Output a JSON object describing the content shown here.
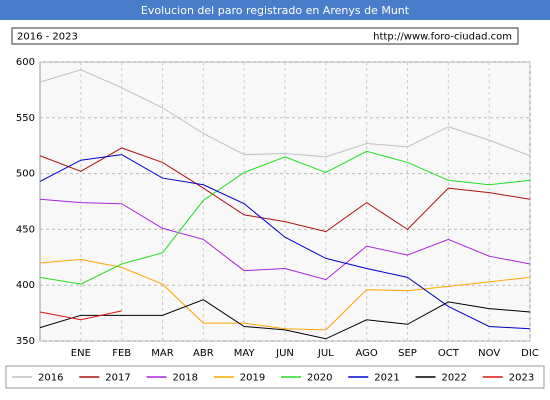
{
  "chart_data": {
    "type": "line",
    "title": "Evolucion del paro registrado en Arenys de Munt",
    "subtitle": "2016 - 2023",
    "source": "http://www.foro-ciudad.com",
    "categories": [
      null,
      "ENE",
      "FEB",
      "MAR",
      "ABR",
      "MAY",
      "JUN",
      "JUL",
      "AGO",
      "SEP",
      "OCT",
      "NOV",
      "DIC"
    ],
    "ylim": [
      350,
      600
    ],
    "yticks": [
      350,
      400,
      450,
      500,
      550,
      600
    ],
    "grid": true,
    "legend": "bottom",
    "series": [
      {
        "name": "2016",
        "color": "#c0c0c0",
        "values": [
          582,
          593,
          577,
          559,
          536,
          517,
          518,
          515,
          527,
          524,
          542,
          530,
          516
        ]
      },
      {
        "name": "2017",
        "color": "#aa1111",
        "values": [
          516,
          502,
          523,
          510,
          487,
          463,
          457,
          448,
          474,
          450,
          487,
          483,
          477
        ]
      },
      {
        "name": "2018",
        "color": "#aa22dd",
        "values": [
          477,
          474,
          473,
          451,
          441,
          413,
          415,
          405,
          435,
          427,
          441,
          426,
          419
        ]
      },
      {
        "name": "2019",
        "color": "#ffa500",
        "values": [
          420,
          423,
          416,
          401,
          366,
          366,
          361,
          360,
          396,
          395,
          399,
          403,
          407
        ]
      },
      {
        "name": "2020",
        "color": "#22dd22",
        "values": [
          407,
          401,
          419,
          429,
          476,
          501,
          515,
          501,
          520,
          510,
          494,
          490,
          494
        ]
      },
      {
        "name": "2021",
        "color": "#0000cc",
        "values": [
          493,
          512,
          517,
          496,
          490,
          473,
          443,
          424,
          415,
          407,
          381,
          363,
          361
        ]
      },
      {
        "name": "2022",
        "color": "#000000",
        "values": [
          362,
          373,
          373,
          373,
          387,
          363,
          360,
          352,
          369,
          365,
          385,
          379,
          376
        ]
      },
      {
        "name": "2023",
        "color": "#dd1111",
        "values": [
          376,
          369,
          377,
          null,
          null,
          null,
          null,
          null,
          null,
          null,
          null,
          null,
          null
        ]
      }
    ]
  }
}
